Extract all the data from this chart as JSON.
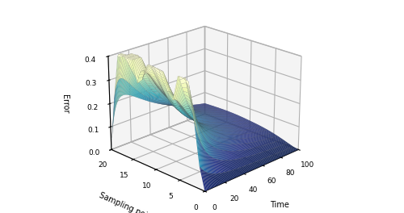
{
  "time_min": 0,
  "time_max": 100,
  "time_steps": 100,
  "sp_min": 0,
  "sp_max": 20,
  "sp_steps": 20,
  "zlim": [
    0,
    0.4
  ],
  "zticks": [
    0,
    0.1,
    0.2,
    0.3,
    0.4
  ],
  "time_ticks": [
    0,
    20,
    40,
    60,
    80,
    100
  ],
  "sp_ticks": [
    0,
    5,
    10,
    15,
    20
  ],
  "xlabel": "Time",
  "ylabel": "Sampling points",
  "zlabel": "Error",
  "colormap": "YlGnBu_r",
  "elev": 22,
  "azim": -135
}
